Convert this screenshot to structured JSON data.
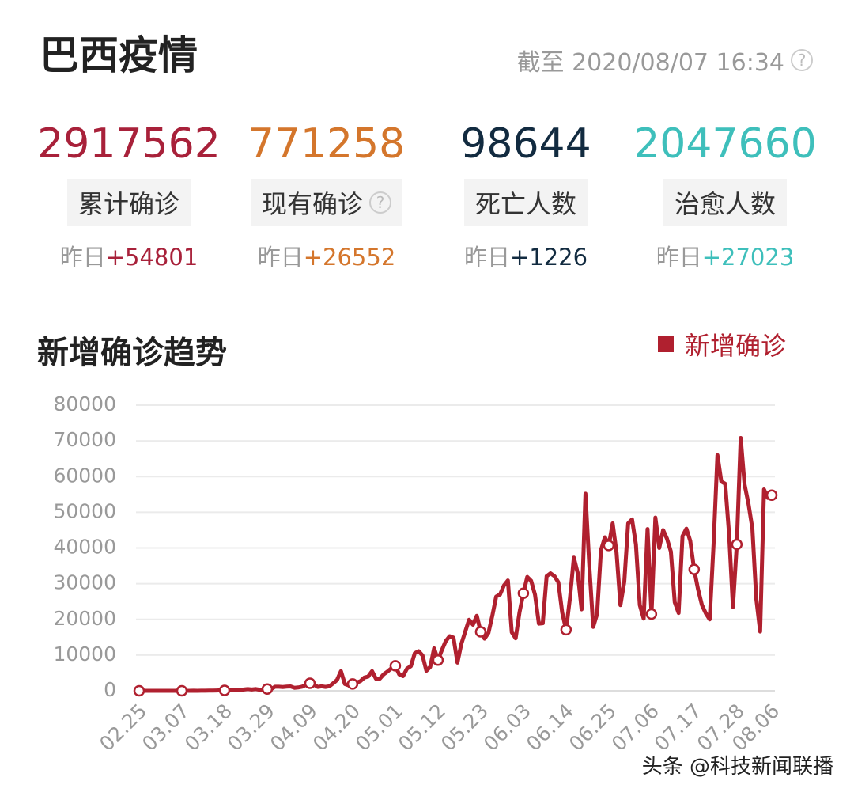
{
  "header": {
    "title": "巴西疫情",
    "as_of": "截至 2020/08/07 16:34"
  },
  "stats": [
    {
      "value": 2917562,
      "label": "累计确诊",
      "delta_prefix": "昨日",
      "delta": "+54801",
      "color": "#a8213a"
    },
    {
      "value": 771258,
      "label": "现有确诊",
      "delta_prefix": "昨日",
      "delta": "+26552",
      "color": "#d4762c"
    },
    {
      "value": 98644,
      "label": "死亡人数",
      "delta_prefix": "昨日",
      "delta": "+1226",
      "color": "#122b40"
    },
    {
      "value": 2047660,
      "label": "治愈人数",
      "delta_prefix": "昨日",
      "delta": "+27023",
      "color": "#3ebfbb"
    }
  ],
  "chart_data": {
    "type": "line",
    "title": "新增确诊趋势",
    "legend": "top-right",
    "grid": true,
    "ylim": [
      0,
      80000
    ],
    "yticks": [
      0,
      10000,
      20000,
      30000,
      40000,
      50000,
      60000,
      70000,
      80000
    ],
    "categories": [
      "02.25",
      null,
      null,
      null,
      null,
      null,
      null,
      null,
      null,
      null,
      null,
      "03.07",
      null,
      null,
      null,
      null,
      null,
      null,
      null,
      null,
      null,
      null,
      "03.18",
      null,
      null,
      null,
      null,
      null,
      null,
      null,
      null,
      null,
      null,
      "03.29",
      null,
      null,
      null,
      null,
      null,
      null,
      null,
      null,
      null,
      null,
      "04.09",
      null,
      null,
      null,
      null,
      null,
      null,
      null,
      null,
      null,
      null,
      "04.20",
      null,
      null,
      null,
      null,
      null,
      null,
      null,
      null,
      null,
      null,
      "05.01",
      null,
      null,
      null,
      null,
      null,
      null,
      null,
      null,
      null,
      null,
      "05.12",
      null,
      null,
      null,
      null,
      null,
      null,
      null,
      null,
      null,
      null,
      "05.23",
      null,
      null,
      null,
      null,
      null,
      null,
      null,
      null,
      null,
      null,
      "06.03",
      null,
      null,
      null,
      null,
      null,
      null,
      null,
      null,
      null,
      null,
      "06.14",
      null,
      null,
      null,
      null,
      null,
      null,
      null,
      null,
      null,
      null,
      "06.25",
      null,
      null,
      null,
      null,
      null,
      null,
      null,
      null,
      null,
      null,
      "07.06",
      null,
      null,
      null,
      null,
      null,
      null,
      null,
      null,
      null,
      null,
      "07.17",
      null,
      null,
      null,
      null,
      null,
      null,
      null,
      null,
      null,
      null,
      "07.28",
      null,
      null,
      null,
      null,
      null,
      null,
      null,
      null,
      "08.06"
    ],
    "series": [
      {
        "name": "新增确诊",
        "color": "#b0202f",
        "values": [
          0,
          0,
          1,
          0,
          0,
          1,
          0,
          0,
          0,
          1,
          5,
          5,
          0,
          6,
          12,
          7,
          20,
          30,
          40,
          60,
          90,
          130,
          100,
          230,
          230,
          330,
          200,
          350,
          480,
          350,
          490,
          300,
          320,
          500,
          480,
          1140,
          1120,
          1070,
          1150,
          1220,
          850,
          926,
          1150,
          1660,
          2100,
          1780,
          1090,
          1240,
          1090,
          1260,
          2100,
          3050,
          5500,
          1900,
          1500,
          1900,
          2300,
          2700,
          3700,
          4000,
          5500,
          3400,
          3400,
          4600,
          5400,
          6300,
          7000,
          4600,
          4100,
          6200,
          6900,
          10500,
          11100,
          9900,
          5600,
          6700,
          11900,
          8600,
          11400,
          13900,
          15300,
          14900,
          7900,
          13100,
          16500,
          19900,
          18500,
          21000,
          16500,
          14600,
          16200,
          21000,
          26400,
          27000,
          29500,
          30900,
          16400,
          14700,
          22000,
          27300,
          31900,
          30800,
          26900,
          18800,
          18900,
          32100,
          32900,
          32100,
          30400,
          21900,
          17100,
          26000,
          37300,
          33000,
          22800,
          55200,
          34900,
          17900,
          21500,
          39400,
          43000,
          40700,
          46900,
          38700,
          24000,
          30500,
          46900,
          48000,
          41000,
          24000,
          20200,
          45300,
          21500,
          48500,
          40000,
          45000,
          42600,
          39000,
          24800,
          21800,
          43300,
          45400,
          42000,
          34000,
          28500,
          24000,
          21700,
          20000,
          41000,
          66000,
          58600,
          58000,
          44000,
          23500,
          41000,
          70800,
          57800,
          52300,
          45400,
          25800,
          16600,
          56400,
          54000,
          54801
        ]
      }
    ]
  },
  "watermark": "头条 @科技新闻联播"
}
